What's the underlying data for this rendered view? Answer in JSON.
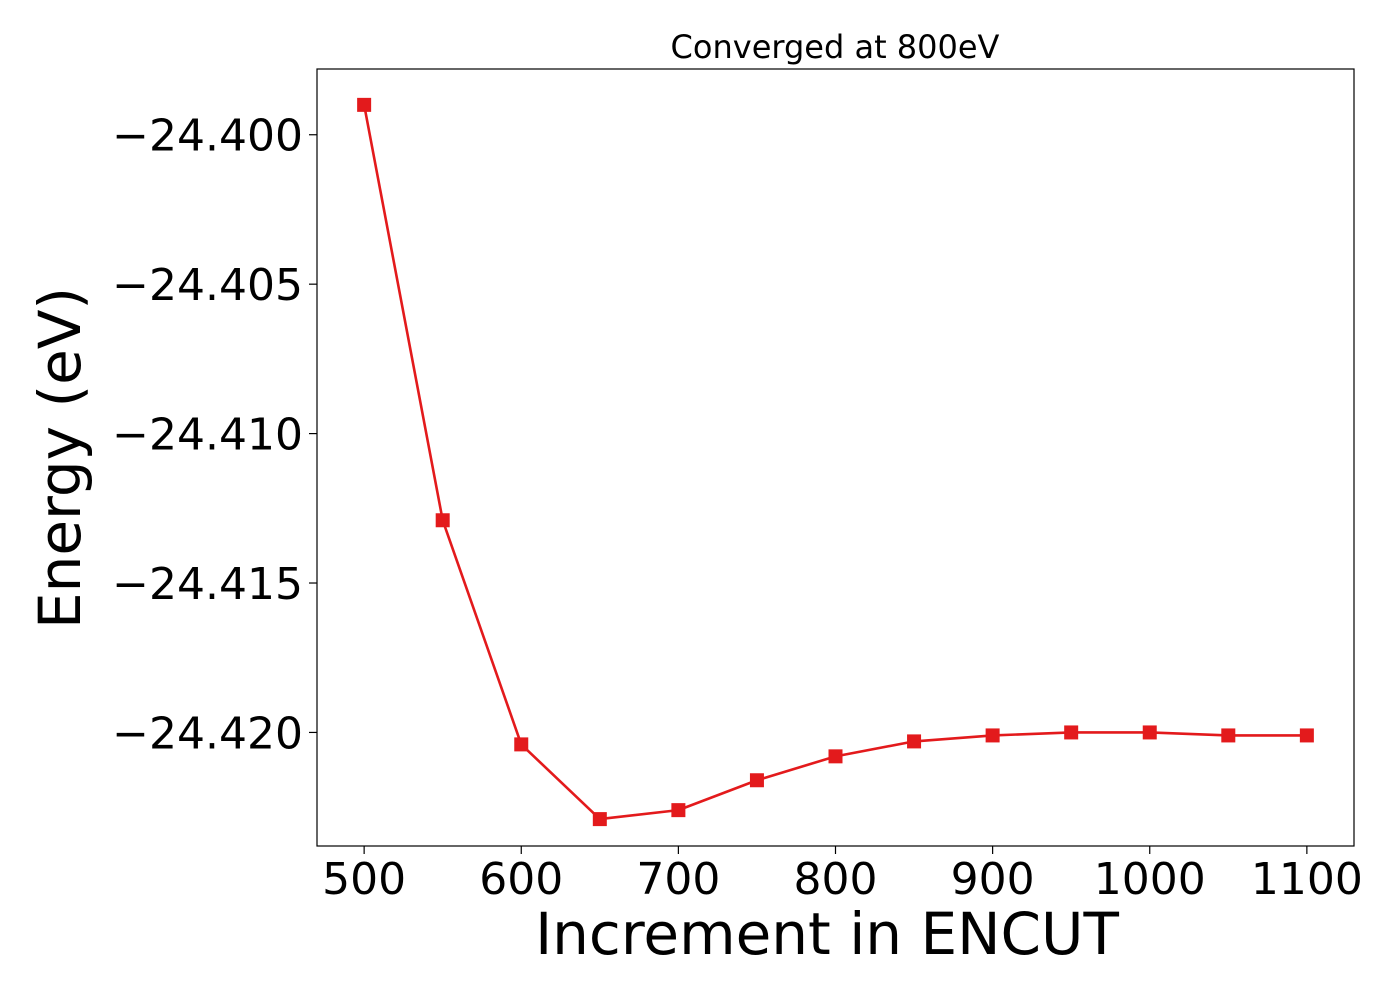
{
  "chart_data": {
    "type": "line",
    "title": "Converged at 800eV",
    "xlabel": "Increment in ENCUT",
    "ylabel": "Energy (eV)",
    "xlim": [
      470,
      1130
    ],
    "ylim": [
      -24.4238,
      -24.3978
    ],
    "x_ticks": [
      500,
      600,
      700,
      800,
      900,
      1000,
      1100
    ],
    "x_tick_labels": [
      "500",
      "600",
      "700",
      "800",
      "900",
      "1000",
      "1100"
    ],
    "y_ticks": [
      -24.4,
      -24.405,
      -24.41,
      -24.415,
      -24.42
    ],
    "y_tick_labels": [
      "−24.400",
      "−24.405",
      "−24.410",
      "−24.415",
      "−24.420"
    ],
    "grid": false,
    "legend": "none",
    "series": [
      {
        "color": "#e31a1c",
        "marker": "square",
        "x": [
          500,
          550,
          600,
          650,
          700,
          750,
          800,
          850,
          900,
          950,
          1000,
          1050,
          1100
        ],
        "y": [
          -24.399,
          -24.4129,
          -24.4204,
          -24.4229,
          -24.4226,
          -24.4216,
          -24.4208,
          -24.4203,
          -24.4201,
          -24.42,
          -24.42,
          -24.4201,
          -24.4201
        ]
      }
    ]
  }
}
